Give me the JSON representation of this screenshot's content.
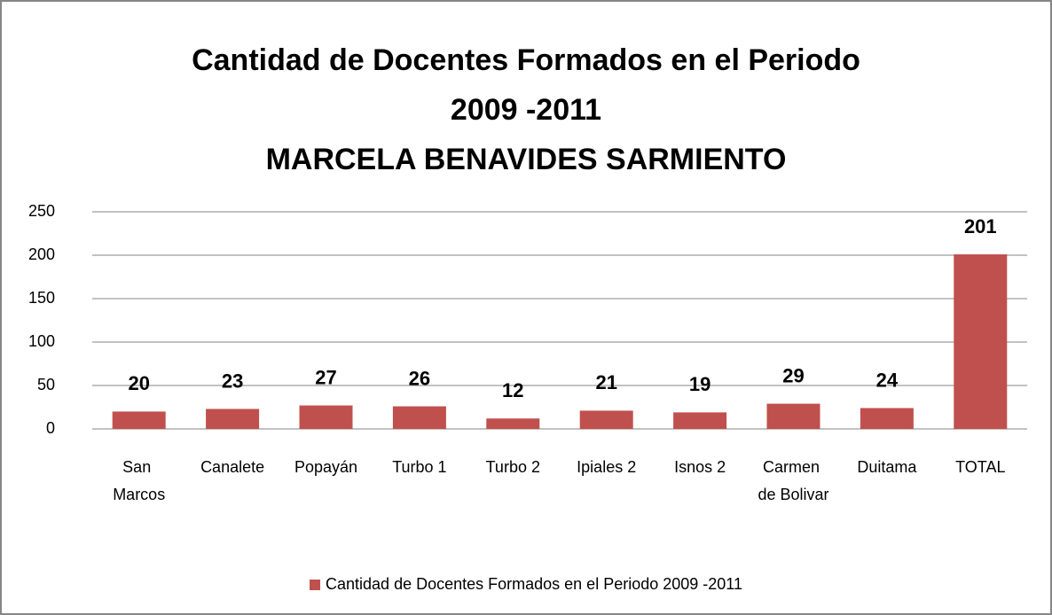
{
  "chart_data": {
    "type": "bar",
    "title": [
      "Cantidad de Docentes Formados en el Periodo",
      "2009 -2011",
      "MARCELA BENAVIDES SARMIENTO"
    ],
    "categories": [
      "San Marcos",
      "Canalete",
      "Popayán",
      "Turbo 1",
      "Turbo 2",
      "Ipiales 2",
      "Isnos 2",
      "Carmen de Bolivar",
      "Duitama",
      "TOTAL"
    ],
    "series": [
      {
        "name": "Cantidad de Docentes Formados en el Periodo 2009 -2011",
        "color": "#c0504d",
        "values": [
          20,
          23,
          27,
          26,
          12,
          21,
          19,
          29,
          24,
          201
        ]
      }
    ],
    "ylim": [
      0,
      250
    ],
    "yticks": [
      0,
      50,
      100,
      150,
      200,
      250
    ],
    "grid": true,
    "legend": "bottom"
  }
}
